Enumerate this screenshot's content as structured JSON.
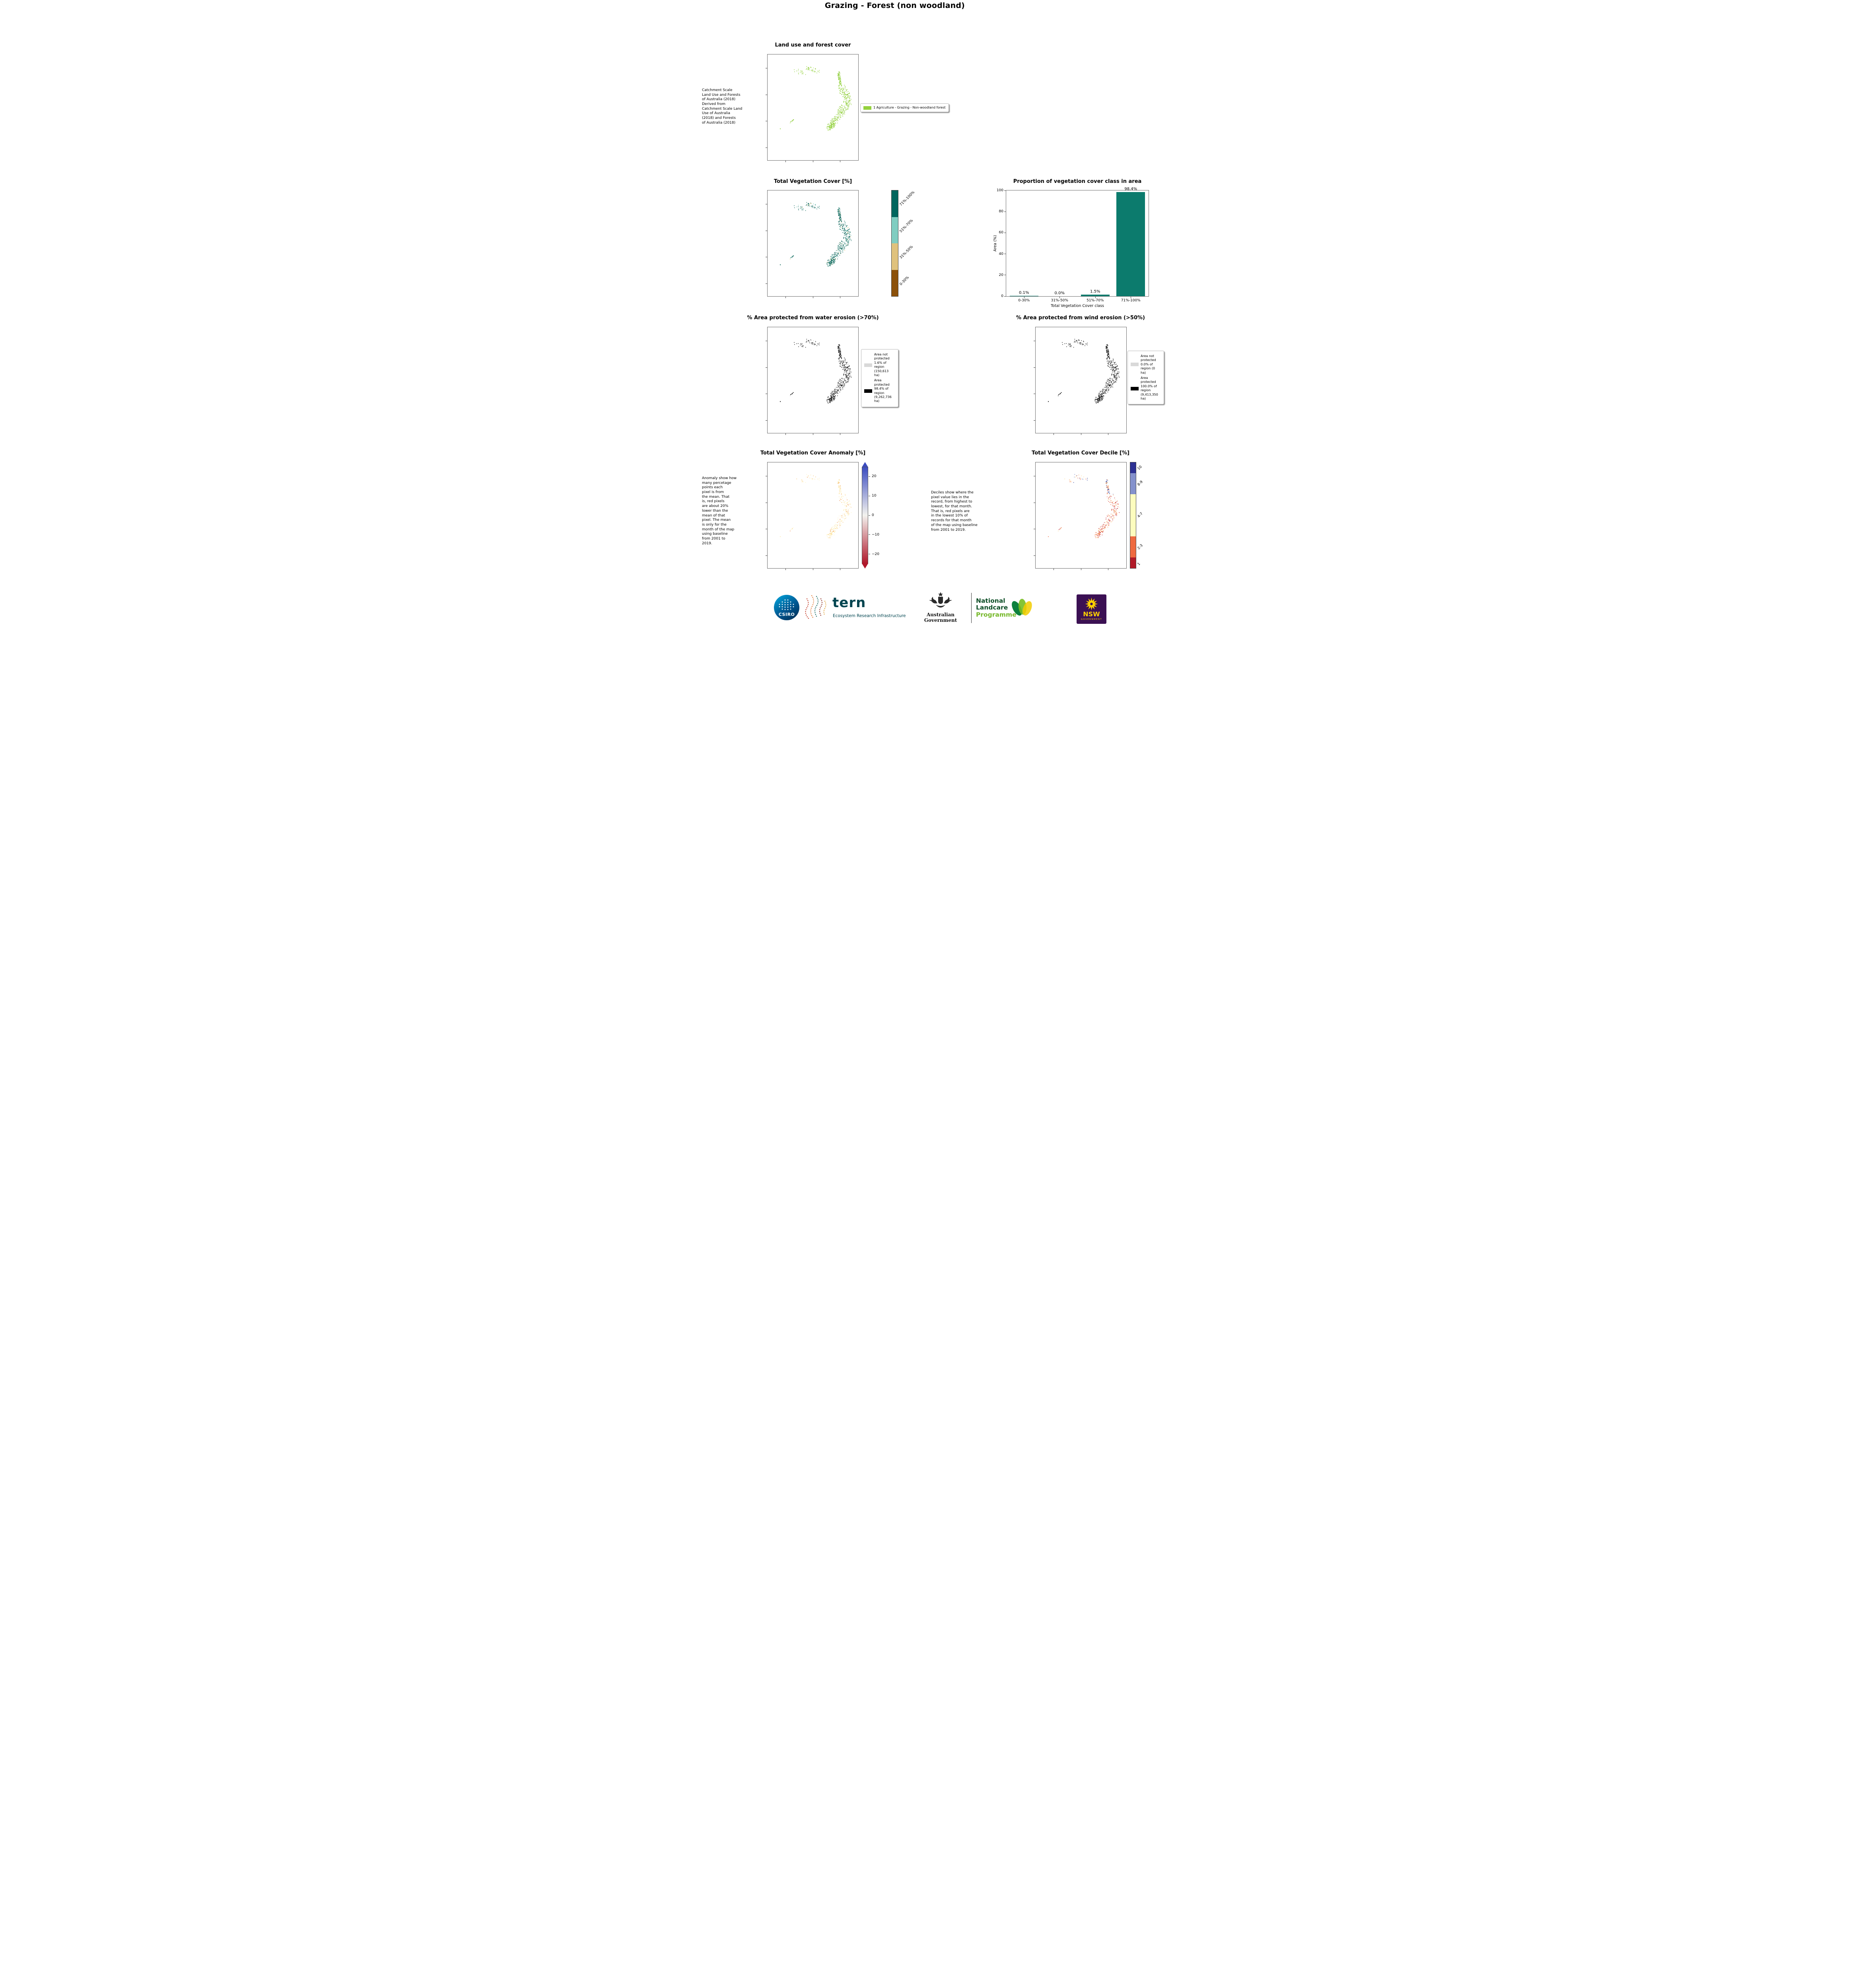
{
  "page": {
    "title": "Grazing - Forest (non woodland)"
  },
  "land_use": {
    "title": "Land use and forest cover",
    "caption": " Catchment Scale\nLand Use and Forests\nof Australia (2018)\nDerived from\nCatchment Scale Land\nUse of Australia\n(2018) and Forests\nof Australia (2018)",
    "legend": {
      "label": "1 Agriculture - Grazing - Non-woodland forest",
      "color": "#94d13d"
    }
  },
  "veg_cover": {
    "title": "Total Vegetation Cover [%]",
    "colorbar": [
      {
        "label": "71%-100%",
        "color": "#01665e",
        "frac": 0.25
      },
      {
        "label": "51%-70%",
        "color": "#80cdc1",
        "frac": 0.25
      },
      {
        "label": "31%-50%",
        "color": "#dfc27d",
        "frac": 0.25
      },
      {
        "label": "0-30%",
        "color": "#8c510a",
        "frac": 0.25
      }
    ]
  },
  "chart_data": {
    "type": "bar",
    "title": "Proportion of vegetation cover class in area",
    "categories": [
      "0-30%",
      "31%-50%",
      "51%-70%",
      "71%-100%"
    ],
    "values": [
      0.1,
      0.0,
      1.5,
      98.4
    ],
    "labels": [
      "0.1%",
      "0.0%",
      "1.5%",
      "98.4%"
    ],
    "xlabel": "Total Vegetation Cover class",
    "ylabel": "Area (%)",
    "ylim": [
      0,
      100
    ],
    "yticks": [
      0,
      20,
      40,
      60,
      80,
      100
    ],
    "bar_color": "#0c7b6d",
    "grid": false,
    "legend_position": "none"
  },
  "water_erosion": {
    "title": "% Area protected from water erosion (>70%)",
    "legend": [
      {
        "label": "Area not\nprotected\n1.6% of\nregion\n(150,613\nha)",
        "color": "#d9d9d9"
      },
      {
        "label": "Area\nprotected\n98.4% of\nregion\n(9,262,736\nha)",
        "color": "#000000"
      }
    ]
  },
  "wind_erosion": {
    "title": "% Area protected from wind erosion (>50%)",
    "legend": [
      {
        "label": "Area not\nprotected\n0.0% of\nregion (0\nha)",
        "color": "#d9d9d9"
      },
      {
        "label": "Area\nprotected\n100.0% of\nregion\n(9,413,350\nha)",
        "color": "#000000"
      }
    ]
  },
  "anomaly": {
    "title": "Total Vegetation Cover Anomaly [%]",
    "caption": "Anomaly show how\nmany percetage\npoints each\npixel is from\nthe mean. That\nis, red pixels\nare about 20%\nlower than the\nmean of that\npixel. The mean\nis only for the\nmonth of the map\nusing baseline\nfrom 2001 to\n2019.",
    "ticks": [
      "20",
      "10",
      "0",
      "−10",
      "−20"
    ],
    "colorbar_colors": {
      "top": "#3b4cc0",
      "mid": "#f3f2ee",
      "bottom": "#b0182b"
    }
  },
  "decile": {
    "title": "Total Vegetation Cover Decile [%]",
    "caption": "Deciles show where the\npixel value lies in the\nrecord, from highest to\nlowest, for that month.\nThat is, red pixels are\nin the lowest 10% of\nrecords for that month\nof the map using baseline\nfrom 2001 to 2019.",
    "colorbar": [
      {
        "label": "10",
        "color": "#2d3193",
        "frac": 0.1
      },
      {
        "label": "8-9",
        "color": "#8491cc",
        "frac": 0.2
      },
      {
        "label": "4-7",
        "color": "#fdfdbe",
        "frac": 0.4
      },
      {
        "label": "2-3",
        "color": "#ee6a40",
        "frac": 0.2
      },
      {
        "label": "1",
        "color": "#b11a28",
        "frac": 0.1
      }
    ]
  },
  "footer": {
    "csiro_label": "CSIRO",
    "tern_label": "tern",
    "tern_sub": "Ecosystem Research Infrastructure",
    "aus_gov": "Australian Government",
    "landcare_line1": "National",
    "landcare_line2": "Landcare",
    "landcare_line3": "Programme",
    "nsw_label": "NSW",
    "nsw_sub": "GOVERNMENT"
  }
}
